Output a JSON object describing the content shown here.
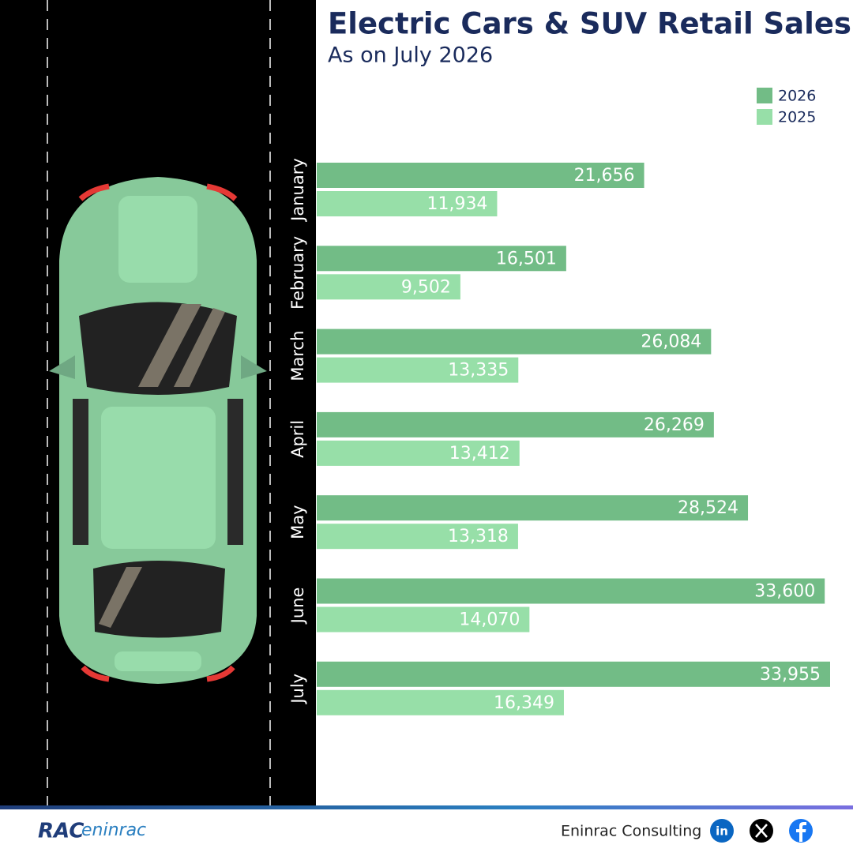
{
  "chart_data": {
    "type": "bar",
    "orientation": "horizontal",
    "title": "Electric Cars & SUV Retail Sales",
    "subtitle": "As on July 2026",
    "categories": [
      "January",
      "February",
      "March",
      "April",
      "May",
      "June",
      "July"
    ],
    "series": [
      {
        "name": "2026",
        "color": "#72bc86",
        "values": [
          21656,
          16501,
          26084,
          26269,
          28524,
          33600,
          33955
        ],
        "value_labels": [
          "21,656",
          "16,501",
          "26,084",
          "26,269",
          "28,524",
          "33,600",
          "33,955"
        ]
      },
      {
        "name": "2025",
        "color": "#97dfa8",
        "values": [
          11934,
          9502,
          13335,
          13412,
          13318,
          14070,
          16349
        ],
        "value_labels": [
          "11,934",
          "9,502",
          "13,335",
          "13,412",
          "13,318",
          "14,070",
          "16,349"
        ]
      }
    ],
    "legend": "top-right"
  },
  "footer": {
    "logo_left": "RAC",
    "logo_right": "eninrac",
    "company": "Eninrac Consulting",
    "linkedin": "in"
  }
}
